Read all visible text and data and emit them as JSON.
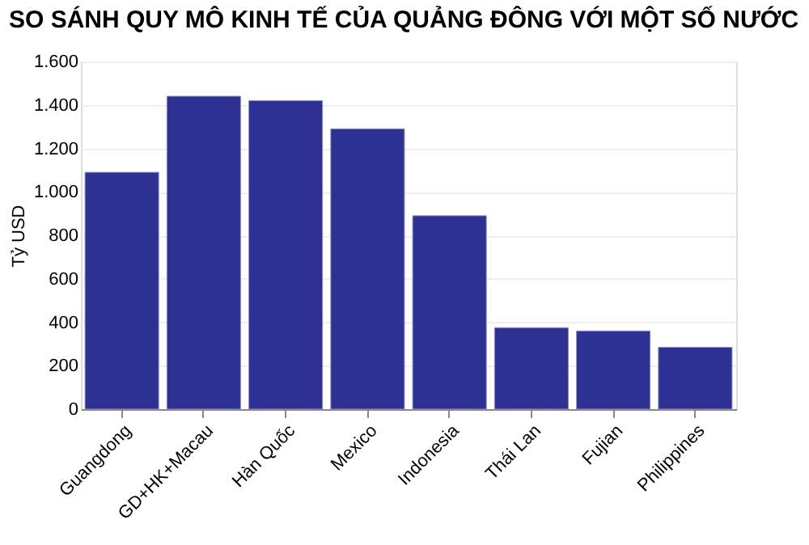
{
  "chart_data": {
    "type": "bar",
    "title": "SO SÁNH QUY MÔ KINH TẾ CỦA QUẢNG ĐÔNG VỚI MỘT SỐ NƯỚC",
    "ylabel": "Tỷ USD",
    "categories": [
      "Guangdong",
      "GD+HK+Macau",
      "Hàn Quốc",
      "Mexico",
      "Indonesia",
      "Thái Lan",
      "Fujian",
      "Philippines"
    ],
    "values": [
      1090,
      1440,
      1420,
      1290,
      890,
      375,
      360,
      285
    ],
    "color": "#2e3192",
    "ylim": [
      0,
      1600
    ],
    "yticks": [
      0,
      200,
      400,
      600,
      800,
      {
        "value": 1000,
        "label": "1.000"
      },
      {
        "value": 1200,
        "label": "1.200"
      },
      {
        "value": 1400,
        "label": "1.400"
      },
      {
        "value": 1600,
        "label": "1.600"
      }
    ],
    "grid": "y"
  }
}
